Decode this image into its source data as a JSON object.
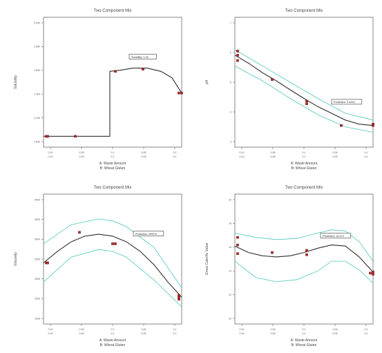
{
  "chart_data": [
    {
      "type": "line",
      "title": "Two Component Mix",
      "xlabel_a": "A: Waste Amount",
      "xlabel_b": "B: Wheat Gluten",
      "ylabel": "Solubility",
      "xticks_a": [
        "0.10",
        "0.05",
        "0.1",
        "0.05",
        "0.1"
      ],
      "xticks_b": [
        "0.10",
        "0.05",
        "0.1",
        "0.05",
        "0.1"
      ],
      "yticks": [
        "1.000",
        "1.200",
        "1.400",
        "1.600",
        "1.800",
        "2.000"
      ],
      "xlim": [
        0,
        1
      ],
      "ylim": [
        0.9,
        2.1
      ],
      "fit": {
        "x": [
          0,
          0.48,
          0.48,
          0.55,
          0.65,
          0.75,
          0.85,
          0.93,
          1.0
        ],
        "y": [
          1.0,
          1.0,
          1.6,
          1.61,
          1.63,
          1.63,
          1.6,
          1.54,
          1.4
        ]
      },
      "band_upper": null,
      "band_lower": null,
      "points": {
        "x": [
          0.02,
          0.03,
          0.23,
          0.52,
          0.72,
          0.98,
          1.0
        ],
        "y": [
          1.0,
          1.0,
          1.0,
          1.6,
          1.62,
          1.4,
          1.4
        ]
      },
      "annotation": {
        "text": "Solubility: 1.00",
        "x": 0.62,
        "y": 1.73
      }
    },
    {
      "type": "line",
      "title": "Two Component Mix",
      "xlabel_a": "A: Waste Amount",
      "xlabel_b": "B: Wheat Gluten",
      "ylabel": "pH",
      "xticks_a": [
        "0.10",
        "0.05",
        "0.1",
        "0.05",
        "0.1"
      ],
      "xticks_b": [
        "0.10",
        "0.05",
        "0.1",
        "0.05",
        "0.1"
      ],
      "yticks": [
        "3",
        "4",
        "5",
        "6",
        "7"
      ],
      "xlim": [
        0,
        1
      ],
      "ylim": [
        2.6,
        7.4
      ],
      "fit": {
        "x": [
          0,
          0.1,
          0.2,
          0.3,
          0.4,
          0.5,
          0.6,
          0.7,
          0.8,
          0.9,
          1.0
        ],
        "y": [
          6.0,
          5.7,
          5.35,
          5.05,
          4.72,
          4.4,
          4.1,
          3.85,
          3.6,
          3.45,
          3.4
        ]
      },
      "band_upper": {
        "x": [
          0,
          0.2,
          0.4,
          0.6,
          0.8,
          1.0
        ],
        "y": [
          6.2,
          5.6,
          5.0,
          4.4,
          3.85,
          3.6
        ]
      },
      "band_lower": {
        "x": [
          0,
          0.2,
          0.4,
          0.6,
          0.8,
          1.0
        ],
        "y": [
          5.6,
          5.05,
          4.4,
          3.8,
          3.35,
          3.15
        ]
      },
      "points": {
        "x": [
          0.02,
          0.02,
          0.02,
          0.27,
          0.52,
          0.52,
          0.77,
          1.0,
          1.0
        ],
        "y": [
          6.15,
          6.0,
          5.8,
          5.1,
          4.3,
          4.2,
          3.4,
          3.45,
          3.4
        ]
      },
      "annotation": {
        "text": "Prediction: 3.4416",
        "x": 0.7,
        "y": 4.25
      }
    },
    {
      "type": "line",
      "title": "Two Component Mix",
      "xlabel_a": "A: Waste Amount",
      "xlabel_b": "B: Wheat Gluten",
      "ylabel": "Viscosity",
      "xticks_a": [
        "0.10",
        "0.05",
        "0.1",
        "0.05",
        "0.1"
      ],
      "xticks_b": [
        "0.10",
        "0.05",
        "0.1",
        "0.05",
        "0.1"
      ],
      "yticks": [
        "1000",
        "1500",
        "2000",
        "2500",
        "3000",
        "3500",
        "4000"
      ],
      "xlim": [
        0,
        1
      ],
      "ylim": [
        800,
        4200
      ],
      "fit": {
        "x": [
          0,
          0.1,
          0.2,
          0.3,
          0.4,
          0.5,
          0.6,
          0.7,
          0.8,
          0.9,
          1.0
        ],
        "y": [
          2400,
          2700,
          2950,
          3100,
          3150,
          3100,
          2950,
          2700,
          2350,
          1900,
          1500
        ]
      },
      "band_upper": {
        "x": [
          0,
          0.2,
          0.4,
          0.5,
          0.6,
          0.8,
          1.0
        ],
        "y": [
          2900,
          3400,
          3550,
          3500,
          3350,
          2800,
          1750
        ]
      },
      "band_lower": {
        "x": [
          0,
          0.2,
          0.4,
          0.5,
          0.6,
          0.8,
          1.0
        ],
        "y": [
          1900,
          2550,
          2750,
          2700,
          2550,
          1950,
          1250
        ]
      },
      "points": {
        "x": [
          0.02,
          0.03,
          0.26,
          0.5,
          0.52,
          0.98,
          0.98,
          0.98
        ],
        "y": [
          2400,
          2400,
          3200,
          2900,
          2900,
          1550,
          1500,
          1450
        ]
      },
      "annotation": {
        "text": "Prediction: 2999.6",
        "x": 0.65,
        "y": 3150
      }
    },
    {
      "type": "line",
      "title": "Two Component Mix",
      "xlabel_a": "A: Waste Amount",
      "xlabel_b": "B: Wheat Gluten",
      "ylabel": "Gross Calorific Value",
      "xticks_a": [
        "0.10",
        "0.05",
        "0.1",
        "0.05",
        "0.1"
      ],
      "xticks_b": [
        "0.10",
        "0.05",
        "0.1",
        "0.05",
        "0.1"
      ],
      "yticks": [
        "10",
        "12",
        "14",
        "16",
        "18",
        "20"
      ],
      "xlim": [
        0,
        1
      ],
      "ylim": [
        9.0,
        21.0
      ],
      "fit": {
        "x": [
          0,
          0.1,
          0.2,
          0.3,
          0.4,
          0.5,
          0.6,
          0.7,
          0.8,
          0.9,
          1.0
        ],
        "y": [
          16.2,
          15.6,
          15.3,
          15.2,
          15.3,
          15.6,
          16.0,
          16.3,
          16.2,
          15.2,
          13.8
        ]
      },
      "band_upper": {
        "x": [
          0,
          0.15,
          0.3,
          0.45,
          0.6,
          0.7,
          0.8,
          0.9,
          1.0
        ],
        "y": [
          17.4,
          17.0,
          16.8,
          16.9,
          17.4,
          17.7,
          17.6,
          16.6,
          14.8
        ]
      },
      "band_lower": {
        "x": [
          0,
          0.15,
          0.3,
          0.45,
          0.6,
          0.7,
          0.8,
          0.9,
          1.0
        ],
        "y": [
          14.8,
          13.3,
          12.9,
          13.1,
          13.9,
          14.8,
          14.8,
          14.0,
          12.8
        ]
      },
      "points": {
        "x": [
          0.02,
          0.02,
          0.02,
          0.27,
          0.52,
          0.52,
          0.98,
          1.0,
          1.0
        ],
        "y": [
          17.0,
          16.3,
          15.5,
          15.6,
          15.8,
          15.4,
          13.7,
          13.6,
          13.8
        ]
      },
      "annotation": {
        "text": "Prediction: 14.473",
        "x": 0.62,
        "y": 17.1
      }
    }
  ]
}
